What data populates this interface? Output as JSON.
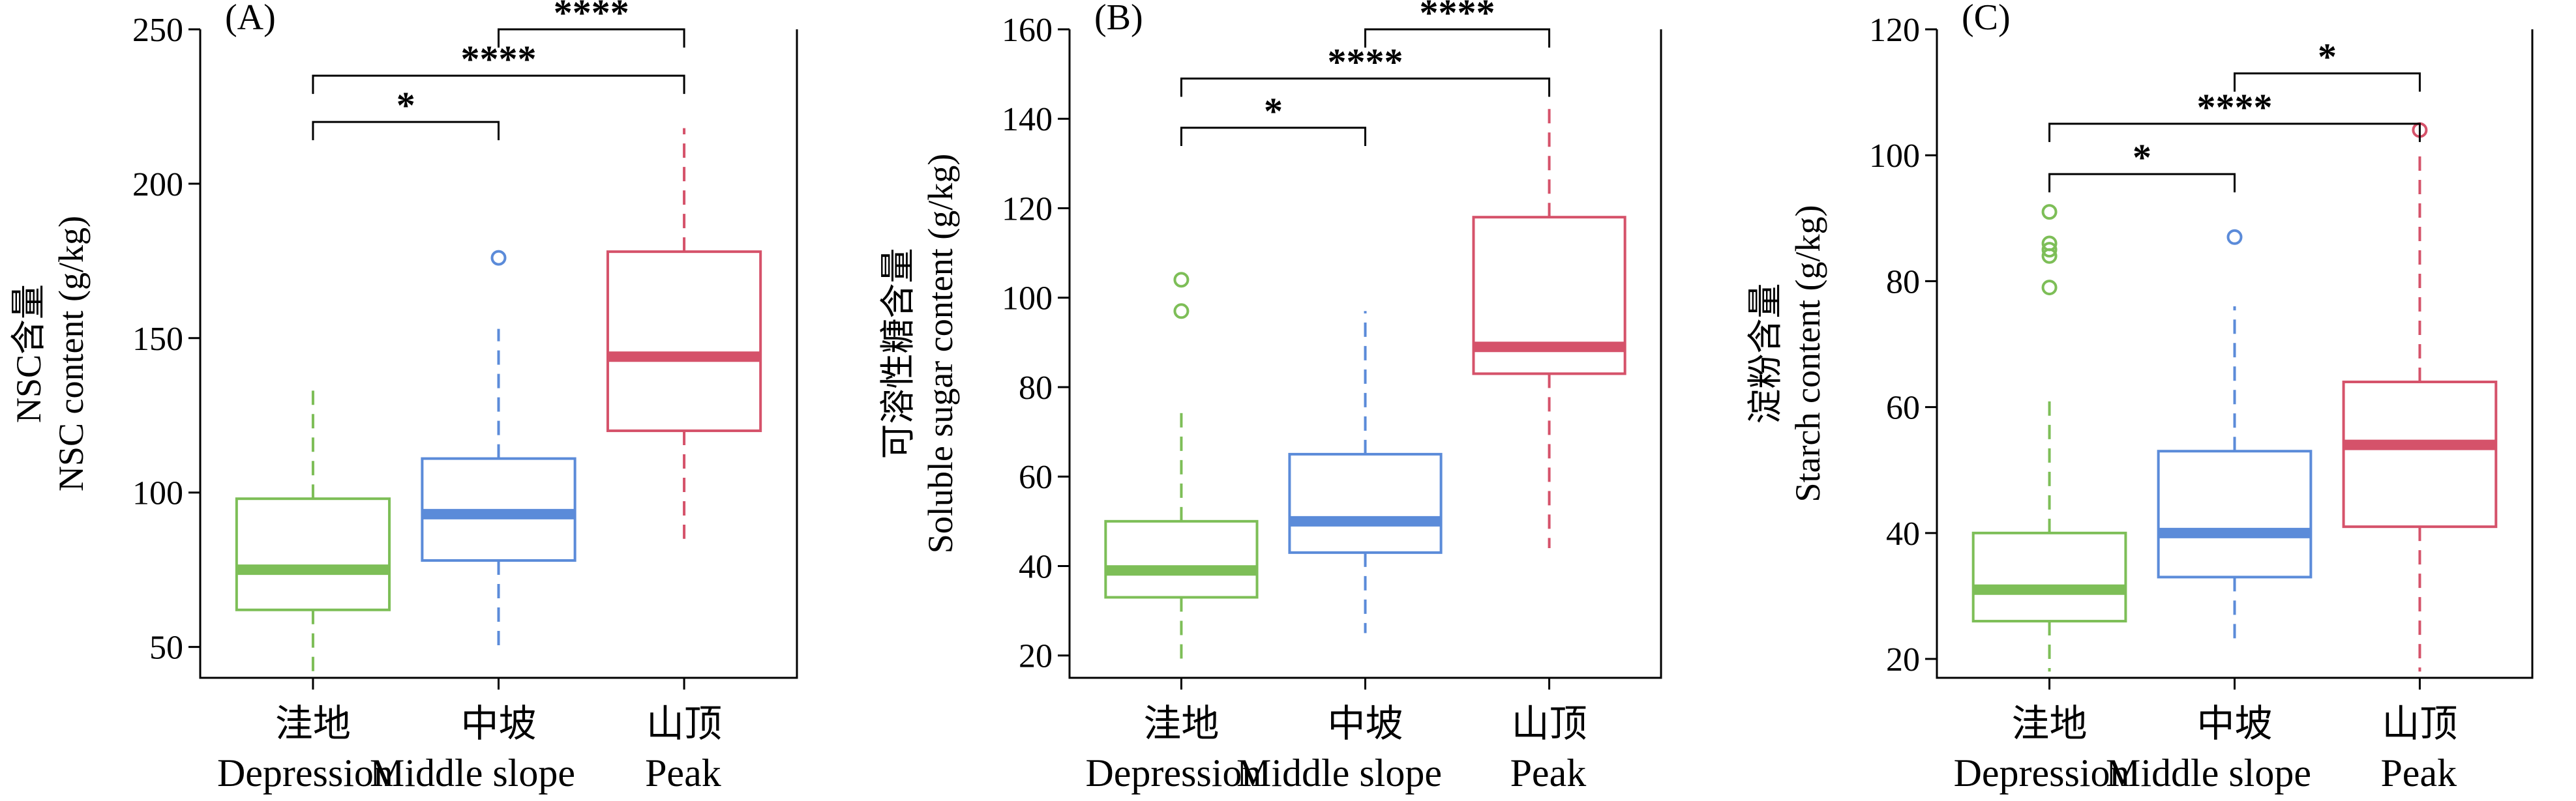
{
  "colors": {
    "depression": "#7DBE57",
    "middle_slope": "#5B8BD9",
    "peak": "#D5526A"
  },
  "chart_data": [
    {
      "type": "box",
      "panel_label": "(A)",
      "ylabel_cn": "NSC含量",
      "ylabel_en": "NSC content (g/kg)",
      "ylim": [
        40,
        250
      ],
      "yticks": [
        50,
        100,
        150,
        200,
        250
      ],
      "categories": [
        {
          "cn": "洼地",
          "en": "Depression"
        },
        {
          "cn": "中坡",
          "en": "Middle slope"
        },
        {
          "cn": "山顶",
          "en": "Peak"
        }
      ],
      "boxes": [
        {
          "whisker_low": 42,
          "q1": 62,
          "median": 75,
          "q3": 98,
          "whisker_high": 133,
          "outliers": []
        },
        {
          "whisker_low": 48,
          "q1": 78,
          "median": 93,
          "q3": 111,
          "whisker_high": 153,
          "outliers": [
            176
          ]
        },
        {
          "whisker_low": 85,
          "q1": 120,
          "median": 144,
          "q3": 178,
          "whisker_high": 218,
          "outliers": []
        }
      ],
      "significance": [
        {
          "from": 0,
          "to": 1,
          "label": "*",
          "y": 220
        },
        {
          "from": 0,
          "to": 2,
          "label": "****",
          "y": 235
        },
        {
          "from": 1,
          "to": 2,
          "label": "****",
          "y": 250
        }
      ]
    },
    {
      "type": "box",
      "panel_label": "(B)",
      "ylabel_cn": "可溶性糖含量",
      "ylabel_en": "Soluble sugar content (g/kg)",
      "ylim": [
        15,
        160
      ],
      "yticks": [
        20,
        40,
        60,
        80,
        100,
        120,
        140,
        160
      ],
      "categories": [
        {
          "cn": "洼地",
          "en": "Depression"
        },
        {
          "cn": "中坡",
          "en": "Middle slope"
        },
        {
          "cn": "山顶",
          "en": "Peak"
        }
      ],
      "boxes": [
        {
          "whisker_low": 18,
          "q1": 33,
          "median": 39,
          "q3": 50,
          "whisker_high": 75,
          "outliers": [
            97,
            104
          ]
        },
        {
          "whisker_low": 25,
          "q1": 43,
          "median": 50,
          "q3": 65,
          "whisker_high": 97,
          "outliers": []
        },
        {
          "whisker_low": 44,
          "q1": 83,
          "median": 89,
          "q3": 118,
          "whisker_high": 143,
          "outliers": []
        }
      ],
      "significance": [
        {
          "from": 0,
          "to": 1,
          "label": "*",
          "y": 138
        },
        {
          "from": 0,
          "to": 2,
          "label": "****",
          "y": 149
        },
        {
          "from": 1,
          "to": 2,
          "label": "****",
          "y": 160
        }
      ]
    },
    {
      "type": "box",
      "panel_label": "(C)",
      "ylabel_cn": "淀粉含量",
      "ylabel_en": "Starch content (g/kg)",
      "ylim": [
        17,
        120
      ],
      "yticks": [
        20,
        40,
        60,
        80,
        100,
        120
      ],
      "categories": [
        {
          "cn": "洼地",
          "en": "Depression"
        },
        {
          "cn": "中坡",
          "en": "Middle slope"
        },
        {
          "cn": "山顶",
          "en": "Peak"
        }
      ],
      "boxes": [
        {
          "whisker_low": 18,
          "q1": 26,
          "median": 31,
          "q3": 40,
          "whisker_high": 61,
          "outliers": [
            79,
            84,
            85,
            86,
            91
          ]
        },
        {
          "whisker_low": 22,
          "q1": 33,
          "median": 40,
          "q3": 53,
          "whisker_high": 76,
          "outliers": [
            87
          ]
        },
        {
          "whisker_low": 18,
          "q1": 41,
          "median": 54,
          "q3": 64,
          "whisker_high": 100,
          "outliers": [
            104
          ]
        }
      ],
      "significance": [
        {
          "from": 0,
          "to": 1,
          "label": "*",
          "y": 97
        },
        {
          "from": 0,
          "to": 2,
          "label": "****",
          "y": 105
        },
        {
          "from": 1,
          "to": 2,
          "label": "*",
          "y": 113
        }
      ]
    }
  ]
}
